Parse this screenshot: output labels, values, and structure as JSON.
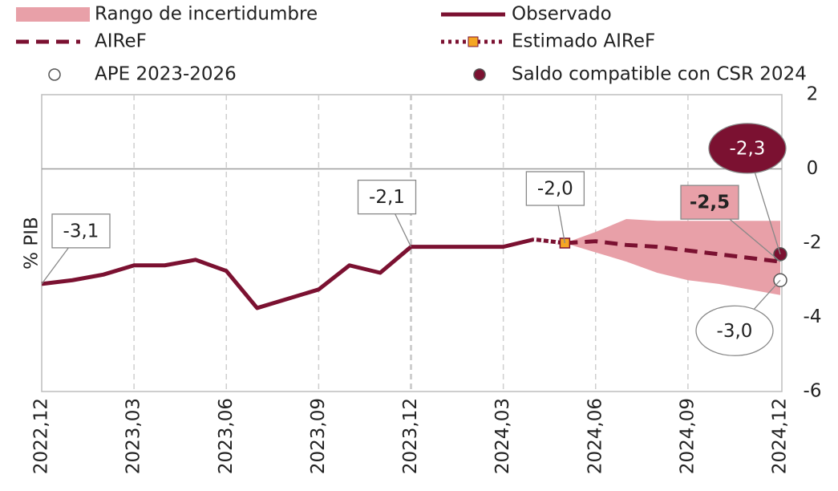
{
  "chart_data": {
    "type": "line",
    "y_label": "% PIB",
    "categories": [
      "2022,12",
      null,
      null,
      "2023,03",
      null,
      null,
      "2023,06",
      null,
      null,
      "2023,09",
      null,
      null,
      "2023,12",
      null,
      null,
      "2024,03",
      null,
      null,
      "2024,06",
      null,
      null,
      "2024,09",
      null,
      null,
      "2024,12"
    ],
    "ylim": [
      -6,
      2
    ],
    "yticks": [
      2,
      0,
      -2,
      -4,
      -6
    ],
    "grid": true,
    "series": [
      {
        "name": "Rango de incertidumbre",
        "color": "#e8a0a8",
        "style": "band",
        "upper": [
          null,
          null,
          null,
          null,
          null,
          null,
          null,
          null,
          null,
          null,
          null,
          null,
          null,
          null,
          null,
          null,
          null,
          -2.0,
          -1.7,
          -1.35,
          -1.4,
          -1.4,
          -1.4,
          -1.4,
          -1.4
        ],
        "lower": [
          null,
          null,
          null,
          null,
          null,
          null,
          null,
          null,
          null,
          null,
          null,
          null,
          null,
          null,
          null,
          null,
          null,
          -2.0,
          -2.25,
          -2.5,
          -2.8,
          -3.0,
          -3.1,
          -3.25,
          -3.4
        ]
      },
      {
        "name": "Observado",
        "color": "#7b1131",
        "style": "solid",
        "values": [
          -3.1,
          -3.0,
          -2.85,
          -2.6,
          -2.6,
          -2.45,
          -2.75,
          -3.75,
          -3.5,
          -3.25,
          -2.6,
          -2.8,
          -2.1,
          -2.1,
          -2.1,
          -2.1,
          -1.9,
          null,
          null,
          null,
          null,
          null,
          null,
          null,
          null
        ],
        "value_labels": [
          "-3,1",
          null,
          null,
          null,
          null,
          null,
          null,
          null,
          null,
          null,
          null,
          null,
          "-2,1",
          null,
          null,
          null,
          null,
          null,
          null,
          null,
          null,
          null,
          null,
          null,
          null
        ]
      },
      {
        "name": "AIReF",
        "color": "#7b1131",
        "style": "dashed",
        "values": [
          null,
          null,
          null,
          null,
          null,
          null,
          null,
          null,
          null,
          null,
          null,
          null,
          null,
          null,
          null,
          null,
          null,
          -2.0,
          -1.95,
          -2.05,
          -2.1,
          -2.2,
          -2.3,
          -2.4,
          -2.5
        ],
        "value_labels": [
          null,
          null,
          null,
          null,
          null,
          null,
          null,
          null,
          null,
          null,
          null,
          null,
          null,
          null,
          null,
          null,
          null,
          null,
          null,
          null,
          null,
          null,
          null,
          null,
          "-2,5"
        ]
      },
      {
        "name": "Estimado AIReF",
        "color": "#7b1131",
        "style": "dotted",
        "values": [
          null,
          null,
          null,
          null,
          null,
          null,
          null,
          null,
          null,
          null,
          null,
          null,
          null,
          null,
          null,
          null,
          -1.9,
          -2.0,
          null,
          null,
          null,
          null,
          null,
          null,
          null
        ],
        "value_labels": [
          null,
          null,
          null,
          null,
          null,
          null,
          null,
          null,
          null,
          null,
          null,
          null,
          null,
          null,
          null,
          null,
          null,
          "-2,0",
          null,
          null,
          null,
          null,
          null,
          null,
          null
        ]
      },
      {
        "name": "APE 2023-2026",
        "color": "#ffffff",
        "style": "point",
        "values": [
          null,
          null,
          null,
          null,
          null,
          null,
          null,
          null,
          null,
          null,
          null,
          null,
          null,
          null,
          null,
          null,
          null,
          null,
          null,
          null,
          null,
          null,
          null,
          null,
          -3.0
        ],
        "value_labels": [
          null,
          null,
          null,
          null,
          null,
          null,
          null,
          null,
          null,
          null,
          null,
          null,
          null,
          null,
          null,
          null,
          null,
          null,
          null,
          null,
          null,
          null,
          null,
          null,
          "-3,0"
        ]
      },
      {
        "name": "Saldo compatible con CSR 2024",
        "color": "#7b1131",
        "style": "point",
        "values": [
          null,
          null,
          null,
          null,
          null,
          null,
          null,
          null,
          null,
          null,
          null,
          null,
          null,
          null,
          null,
          null,
          null,
          null,
          null,
          null,
          null,
          null,
          null,
          null,
          -2.3
        ],
        "value_labels": [
          null,
          null,
          null,
          null,
          null,
          null,
          null,
          null,
          null,
          null,
          null,
          null,
          null,
          null,
          null,
          null,
          null,
          null,
          null,
          null,
          null,
          null,
          null,
          null,
          "-2,3"
        ]
      }
    ]
  }
}
